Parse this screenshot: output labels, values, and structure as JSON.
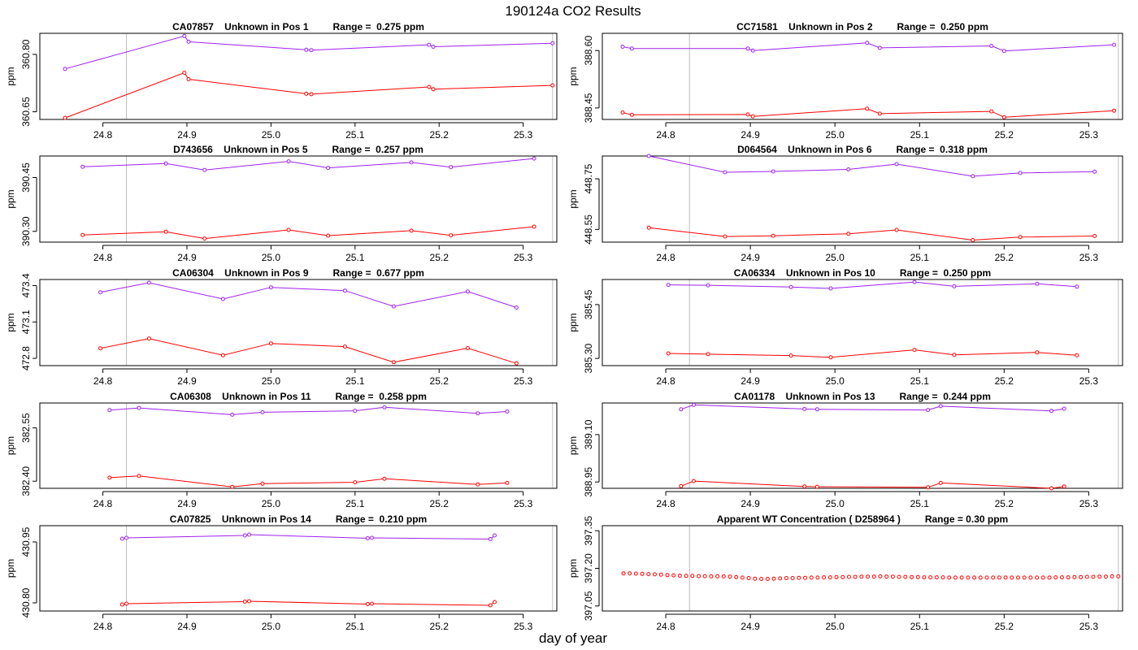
{
  "figure_title": "190124a  CO2 Results",
  "x_axis_label": "day of year",
  "colors": {
    "upper": "#a020f0",
    "lower": "#ff0000",
    "vline": "#bebebe"
  },
  "chart_data": [
    {
      "type": "line",
      "title": "CA07857    Unknown in Pos 1         Range =  0.275 ppm",
      "ylabel": "ppm",
      "xlim": [
        24.725,
        25.34
      ],
      "ylim": [
        360.63,
        360.855
      ],
      "yticks": [
        "360.65",
        "360.80"
      ],
      "ytick_values": [
        360.65,
        360.8
      ],
      "xticks": [
        "24.8",
        "24.9",
        "25.0",
        "25.1",
        "25.2",
        "25.3"
      ],
      "xtick_values": [
        24.8,
        24.9,
        25.0,
        25.1,
        25.2,
        25.3
      ],
      "vlines": [
        24.828,
        25.335
      ],
      "series": [
        {
          "name": "upper",
          "x": [
            24.755,
            24.897,
            24.902,
            25.042,
            25.048,
            25.188,
            25.193,
            25.335
          ],
          "y": [
            360.762,
            360.848,
            360.833,
            360.812,
            360.811,
            360.825,
            360.82,
            360.829
          ]
        },
        {
          "name": "lower",
          "x": [
            24.755,
            24.897,
            24.902,
            25.042,
            25.048,
            25.188,
            25.193,
            25.335
          ],
          "y": [
            360.634,
            360.752,
            360.735,
            360.697,
            360.696,
            360.715,
            360.709,
            360.719
          ]
        }
      ]
    },
    {
      "type": "line",
      "title": "CC71581    Unknown in Pos 2         Range =  0.250 ppm",
      "ylabel": "ppm",
      "xlim": [
        24.725,
        25.34
      ],
      "ylim": [
        388.42,
        388.645
      ],
      "yticks": [
        "388.45",
        "388.60"
      ],
      "ytick_values": [
        388.45,
        388.6
      ],
      "xticks": [
        "24.8",
        "24.9",
        "25.0",
        "25.1",
        "25.2",
        "25.3"
      ],
      "xtick_values": [
        24.8,
        24.9,
        25.0,
        25.1,
        25.2,
        25.3
      ],
      "vlines": [
        24.828,
        25.335
      ],
      "series": [
        {
          "name": "upper",
          "x": [
            24.749,
            24.76,
            24.897,
            24.903,
            25.038,
            25.053,
            25.185,
            25.2,
            25.33
          ],
          "y": [
            388.61,
            388.605,
            388.605,
            388.6,
            388.62,
            388.607,
            388.612,
            388.599,
            388.615
          ]
        },
        {
          "name": "lower",
          "x": [
            24.749,
            24.76,
            24.897,
            24.903,
            25.038,
            25.053,
            25.185,
            25.2,
            25.33
          ],
          "y": [
            388.438,
            388.432,
            388.433,
            388.428,
            388.448,
            388.435,
            388.441,
            388.426,
            388.443
          ]
        }
      ]
    },
    {
      "type": "line",
      "title": "D743656    Unknown in Pos 5         Range =  0.257 ppm",
      "ylabel": "ppm",
      "xlim": [
        24.725,
        25.34
      ],
      "ylim": [
        390.27,
        390.51
      ],
      "yticks": [
        "390.30",
        "390.45"
      ],
      "ytick_values": [
        390.3,
        390.45
      ],
      "xticks": [
        "24.8",
        "24.9",
        "25.0",
        "25.1",
        "25.2",
        "25.3"
      ],
      "xtick_values": [
        24.8,
        24.9,
        25.0,
        25.1,
        25.2,
        25.3
      ],
      "vlines": [
        24.828,
        25.335
      ],
      "series": [
        {
          "name": "upper",
          "x": [
            24.776,
            24.875,
            24.921,
            25.021,
            25.068,
            25.167,
            25.214,
            25.313
          ],
          "y": [
            390.48,
            390.489,
            390.471,
            390.495,
            390.477,
            390.492,
            390.479,
            390.503
          ]
        },
        {
          "name": "lower",
          "x": [
            24.776,
            24.875,
            24.921,
            25.021,
            25.068,
            25.167,
            25.214,
            25.313
          ],
          "y": [
            390.29,
            390.299,
            390.28,
            390.304,
            390.288,
            390.302,
            390.289,
            390.313
          ]
        }
      ]
    },
    {
      "type": "line",
      "title": "D064564    Unknown in Pos 6         Range =  0.318 ppm",
      "ylabel": "ppm",
      "xlim": [
        24.725,
        25.34
      ],
      "ylim": [
        448.5,
        448.84
      ],
      "yticks": [
        "448.55",
        "448.75"
      ],
      "ytick_values": [
        448.55,
        448.75
      ],
      "xticks": [
        "24.8",
        "24.9",
        "25.0",
        "25.1",
        "25.2",
        "25.3"
      ],
      "xtick_values": [
        24.8,
        24.9,
        25.0,
        25.1,
        25.2,
        25.3
      ],
      "vlines": [
        24.828,
        25.335
      ],
      "series": [
        {
          "name": "upper",
          "x": [
            24.78,
            24.87,
            24.927,
            25.016,
            25.073,
            25.163,
            25.219,
            25.307
          ],
          "y": [
            448.84,
            448.776,
            448.779,
            448.787,
            448.808,
            448.76,
            448.773,
            448.778
          ]
        },
        {
          "name": "lower",
          "x": [
            24.78,
            24.87,
            24.927,
            25.016,
            25.073,
            25.163,
            25.219,
            25.307
          ],
          "y": [
            448.557,
            448.522,
            448.525,
            448.533,
            448.548,
            448.508,
            448.52,
            448.524
          ]
        }
      ]
    },
    {
      "type": "line",
      "title": "CA06304    Unknown in Pos 9         Range =  0.677 ppm",
      "ylabel": "ppm",
      "xlim": [
        24.725,
        25.34
      ],
      "ylim": [
        472.74,
        473.45
      ],
      "yticks": [
        "472.8",
        "473.1",
        "473.4"
      ],
      "ytick_values": [
        472.8,
        473.1,
        473.4
      ],
      "xticks": [
        "24.8",
        "24.9",
        "25.0",
        "25.1",
        "25.2",
        "25.3"
      ],
      "xtick_values": [
        24.8,
        24.9,
        25.0,
        25.1,
        25.2,
        25.3
      ],
      "vlines": [
        24.828,
        25.335
      ],
      "series": [
        {
          "name": "upper",
          "x": [
            24.797,
            24.855,
            24.943,
            25.0,
            25.088,
            25.146,
            25.234,
            25.292
          ],
          "y": [
            473.345,
            473.423,
            473.289,
            473.385,
            473.358,
            473.228,
            473.351,
            473.219
          ]
        },
        {
          "name": "lower",
          "x": [
            24.797,
            24.855,
            24.943,
            25.0,
            25.088,
            25.146,
            25.234,
            25.292
          ],
          "y": [
            472.883,
            472.963,
            472.826,
            472.923,
            472.897,
            472.768,
            472.884,
            472.759
          ]
        }
      ]
    },
    {
      "type": "line",
      "title": "CA06334    Unknown in Pos 10         Range =  0.250 ppm",
      "ylabel": "ppm",
      "xlim": [
        24.725,
        25.34
      ],
      "ylim": [
        385.28,
        385.52
      ],
      "yticks": [
        "385.30",
        "385.45"
      ],
      "ytick_values": [
        385.3,
        385.45
      ],
      "xticks": [
        "24.8",
        "24.9",
        "25.0",
        "25.1",
        "25.2",
        "25.3"
      ],
      "xtick_values": [
        24.8,
        24.9,
        25.0,
        25.1,
        25.2,
        25.3
      ],
      "vlines": [
        24.828,
        25.335
      ],
      "series": [
        {
          "name": "upper",
          "x": [
            24.803,
            24.85,
            24.948,
            24.995,
            25.094,
            25.141,
            25.239,
            25.286
          ],
          "y": [
            385.505,
            385.504,
            385.499,
            385.495,
            385.513,
            385.501,
            385.508,
            385.5
          ]
        },
        {
          "name": "lower",
          "x": [
            24.803,
            24.85,
            24.948,
            24.995,
            25.094,
            25.141,
            25.239,
            25.286
          ],
          "y": [
            385.314,
            385.312,
            385.308,
            385.303,
            385.324,
            385.31,
            385.317,
            385.309
          ]
        }
      ]
    },
    {
      "type": "line",
      "title": "CA06308    Unknown in Pos 11         Range =  0.258 ppm",
      "ylabel": "ppm",
      "xlim": [
        24.725,
        25.34
      ],
      "ylim": [
        382.38,
        382.62
      ],
      "yticks": [
        "382.40",
        "382.55"
      ],
      "ytick_values": [
        382.4,
        382.55
      ],
      "xticks": [
        "24.8",
        "24.9",
        "25.0",
        "25.1",
        "25.2",
        "25.3"
      ],
      "xtick_values": [
        24.8,
        24.9,
        25.0,
        25.1,
        25.2,
        25.3
      ],
      "vlines": [
        24.828,
        25.335
      ],
      "series": [
        {
          "name": "upper",
          "x": [
            24.808,
            24.843,
            24.954,
            24.99,
            25.1,
            25.135,
            25.246,
            25.281
          ],
          "y": [
            382.6,
            382.606,
            382.587,
            382.594,
            382.598,
            382.608,
            382.591,
            382.596
          ]
        },
        {
          "name": "lower",
          "x": [
            24.808,
            24.843,
            24.954,
            24.99,
            25.1,
            25.135,
            25.246,
            25.281
          ],
          "y": [
            382.41,
            382.415,
            382.384,
            382.393,
            382.397,
            382.407,
            382.391,
            382.395
          ]
        }
      ]
    },
    {
      "type": "line",
      "title": "CA01178    Unknown in Pos 13         Range =  0.244 ppm",
      "ylabel": "ppm",
      "xlim": [
        24.725,
        25.34
      ],
      "ylim": [
        388.93,
        389.2
      ],
      "yticks": [
        "388.95",
        "389.10"
      ],
      "ytick_values": [
        388.95,
        389.1
      ],
      "xticks": [
        "24.8",
        "24.9",
        "25.0",
        "25.1",
        "25.2",
        "25.3"
      ],
      "xtick_values": [
        24.8,
        24.9,
        25.0,
        25.1,
        25.2,
        25.3
      ],
      "vlines": [
        24.828,
        25.335
      ],
      "series": [
        {
          "name": "upper",
          "x": [
            24.818,
            24.833,
            24.964,
            24.979,
            25.11,
            25.125,
            25.256,
            25.271
          ],
          "y": [
            389.18,
            389.194,
            389.181,
            389.18,
            389.178,
            389.19,
            389.175,
            389.182
          ]
        },
        {
          "name": "lower",
          "x": [
            24.818,
            24.833,
            24.964,
            24.979,
            25.11,
            25.125,
            25.256,
            25.271
          ],
          "y": [
            388.937,
            388.953,
            388.936,
            388.935,
            388.933,
            388.947,
            388.93,
            388.936
          ]
        }
      ]
    },
    {
      "type": "line",
      "title": "CA07825    Unknown in Pos 14         Range =  0.210 ppm",
      "ylabel": "ppm",
      "xlim": [
        24.725,
        25.34
      ],
      "ylim": [
        430.78,
        430.99
      ],
      "yticks": [
        "430.80",
        "430.95"
      ],
      "ytick_values": [
        430.8,
        430.95
      ],
      "xticks": [
        "24.8",
        "24.9",
        "25.0",
        "25.1",
        "25.2",
        "25.3"
      ],
      "xtick_values": [
        24.8,
        24.9,
        25.0,
        25.1,
        25.2,
        25.3
      ],
      "vlines": [
        24.828,
        25.335
      ],
      "series": [
        {
          "name": "upper",
          "x": [
            24.823,
            24.828,
            24.969,
            24.974,
            25.115,
            25.12,
            25.261,
            25.266
          ],
          "y": [
            430.958,
            430.96,
            430.966,
            430.968,
            430.959,
            430.96,
            430.957,
            430.966
          ]
        },
        {
          "name": "lower",
          "x": [
            24.823,
            24.828,
            24.969,
            24.974,
            25.115,
            25.12,
            25.261,
            25.266
          ],
          "y": [
            430.796,
            430.798,
            430.803,
            430.804,
            430.797,
            430.798,
            430.794,
            430.802
          ]
        }
      ]
    },
    {
      "type": "scatter",
      "title": "Apparent WT Concentration ( D258964 )         Range = 0.30 ppm",
      "ylabel": "ppm",
      "xlim": [
        24.725,
        25.34
      ],
      "ylim": [
        397.03,
        397.37
      ],
      "yticks": [
        "397.05",
        "397.20",
        "397.35"
      ],
      "ytick_values": [
        397.05,
        397.2,
        397.35
      ],
      "xticks": [
        "24.8",
        "24.9",
        "25.0",
        "25.1",
        "25.2",
        "25.3"
      ],
      "xtick_values": [
        24.8,
        24.9,
        25.0,
        25.1,
        25.2,
        25.3
      ],
      "vlines": [
        24.828,
        25.335
      ],
      "series": [
        {
          "name": "wt",
          "x_start": 24.75,
          "x_end": 25.335,
          "n": 80,
          "y": [
            397.18,
            397.18,
            397.179,
            397.178,
            397.177,
            397.176,
            397.175,
            397.173,
            397.172,
            397.171,
            397.17,
            397.17,
            397.169,
            397.169,
            397.168,
            397.168,
            397.168,
            397.167,
            397.165,
            397.163,
            397.161,
            397.159,
            397.158,
            397.158,
            397.159,
            397.16,
            397.161,
            397.161,
            397.162,
            397.162,
            397.163,
            397.163,
            397.164,
            397.164,
            397.165,
            397.165,
            397.166,
            397.166,
            397.167,
            397.167,
            397.167,
            397.168,
            397.167,
            397.167,
            397.166,
            397.166,
            397.165,
            397.165,
            397.164,
            397.164,
            397.164,
            397.164,
            397.163,
            397.163,
            397.163,
            397.163,
            397.163,
            397.163,
            397.163,
            397.163,
            397.163,
            397.163,
            397.163,
            397.163,
            397.163,
            397.163,
            397.163,
            397.163,
            397.163,
            397.164,
            397.164,
            397.164,
            397.165,
            397.165,
            397.166,
            397.166,
            397.167,
            397.167,
            397.168,
            397.168
          ]
        }
      ]
    }
  ]
}
